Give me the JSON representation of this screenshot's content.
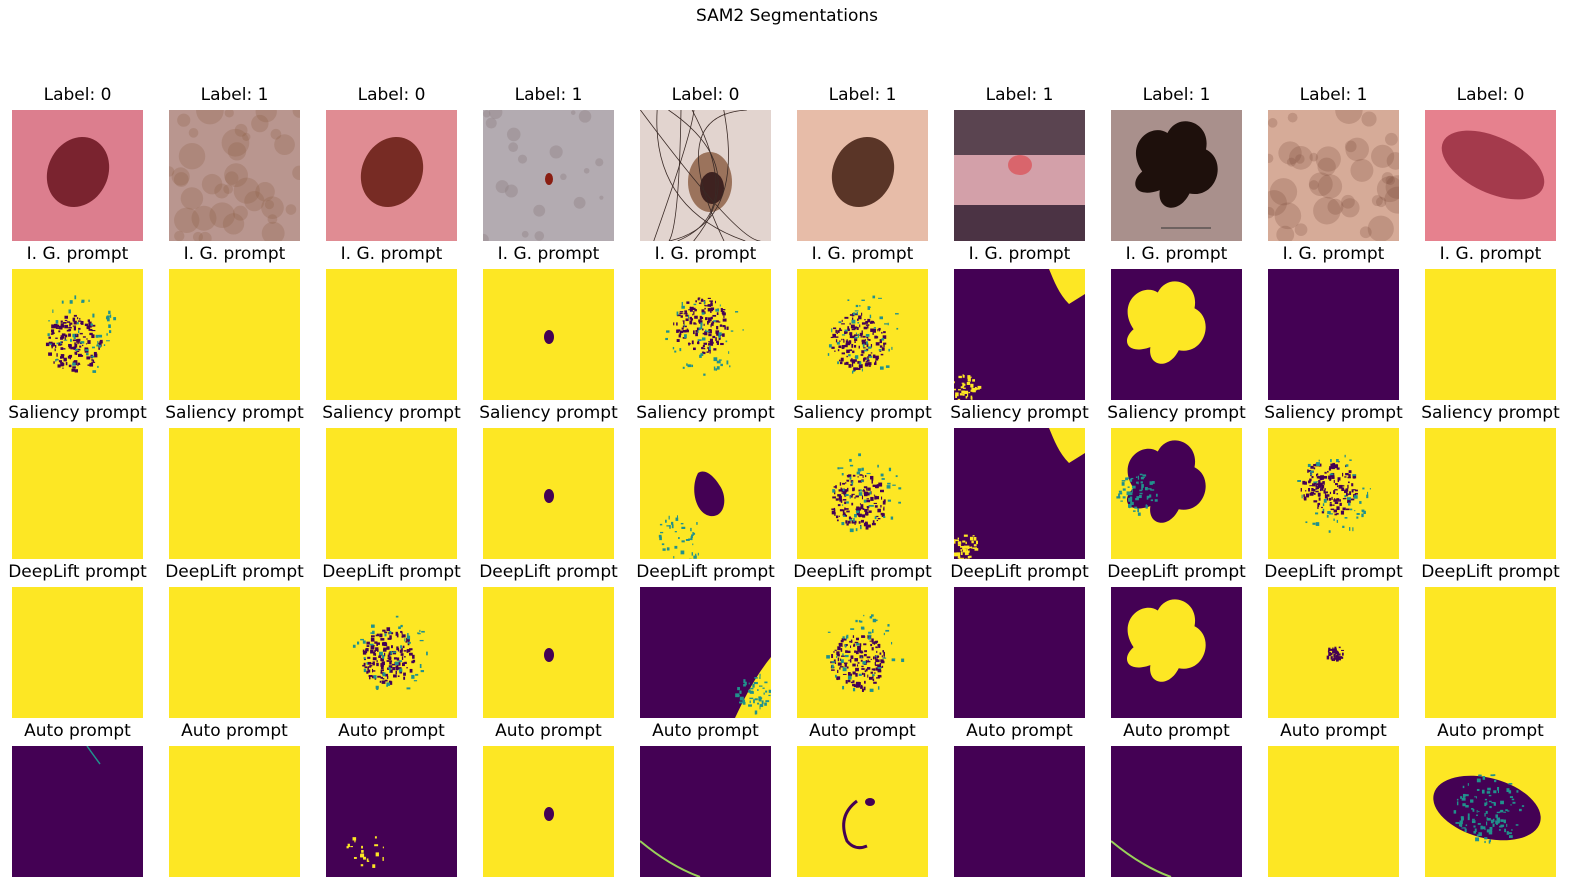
{
  "figure": {
    "title": "SAM2 Segmentations",
    "row_titles": [
      "I. G. prompt",
      "Saliency prompt",
      "DeepLift prompt",
      "Auto prompt"
    ]
  },
  "colors": {
    "mask_fg": "#fde724",
    "mask_bg": "#440154",
    "mask_mid": "#21918c"
  },
  "columns": [
    {
      "label": "Label: 0",
      "image": {
        "bg": "#dc7e8e",
        "lesion": "#6f1a25",
        "kind": "blob"
      },
      "masks": [
        "yellow-speckle",
        "yellow",
        "yellow",
        "purple-edge"
      ]
    },
    {
      "label": "Label: 1",
      "image": {
        "bg": "#b9968f",
        "lesion": "#8b5a3f",
        "kind": "diffuse"
      },
      "masks": [
        "yellow",
        "yellow",
        "yellow",
        "yellow"
      ]
    },
    {
      "label": "Label: 0",
      "image": {
        "bg": "#e08c93",
        "lesion": "#6c2018",
        "kind": "blob"
      },
      "masks": [
        "yellow",
        "yellow",
        "yellow-speckle",
        "purple-speck"
      ]
    },
    {
      "label": "Label: 1",
      "image": {
        "bg": "#b3abb1",
        "lesion": "#8a1e12",
        "kind": "dot"
      },
      "masks": [
        "yellow-dot",
        "yellow-dot",
        "yellow-dot",
        "yellow-dot"
      ]
    },
    {
      "label": "Label: 0",
      "image": {
        "bg": "#e2d4cf",
        "lesion": "#3e2220",
        "kind": "hairy"
      },
      "masks": [
        "yellow-speckle",
        "yellow-hole",
        "purple-corner",
        "purple-line"
      ]
    },
    {
      "label": "Label: 1",
      "image": {
        "bg": "#e7bca8",
        "lesion": "#4a2618",
        "kind": "blob"
      },
      "masks": [
        "yellow-speckle",
        "yellow-speckle",
        "yellow-speckle",
        "yellow-arc"
      ]
    },
    {
      "label": "Label: 1",
      "image": {
        "bg": "#d3a0a9",
        "lesion": "#d9656c",
        "kind": "lip"
      },
      "masks": [
        "purple-topright",
        "purple-topright",
        "purple",
        "purple"
      ]
    },
    {
      "label": "Label: 1",
      "image": {
        "bg": "#a9908c",
        "lesion": "#1e100c",
        "kind": "cloud"
      },
      "masks": [
        "purple-cloud",
        "yellow-cloud-hole",
        "purple-cloud",
        "purple-line"
      ]
    },
    {
      "label": "Label: 1",
      "image": {
        "bg": "#d6ab98",
        "lesion": "#7b4a3c",
        "kind": "diffuse"
      },
      "masks": [
        "purple",
        "yellow-speckle",
        "yellow-speck",
        "yellow"
      ]
    },
    {
      "label": "Label: 0",
      "image": {
        "bg": "#e6818e",
        "lesion": "#8d2336",
        "kind": "oval"
      },
      "masks": [
        "yellow",
        "yellow",
        "yellow",
        "yellow-oval-speckle"
      ]
    }
  ]
}
